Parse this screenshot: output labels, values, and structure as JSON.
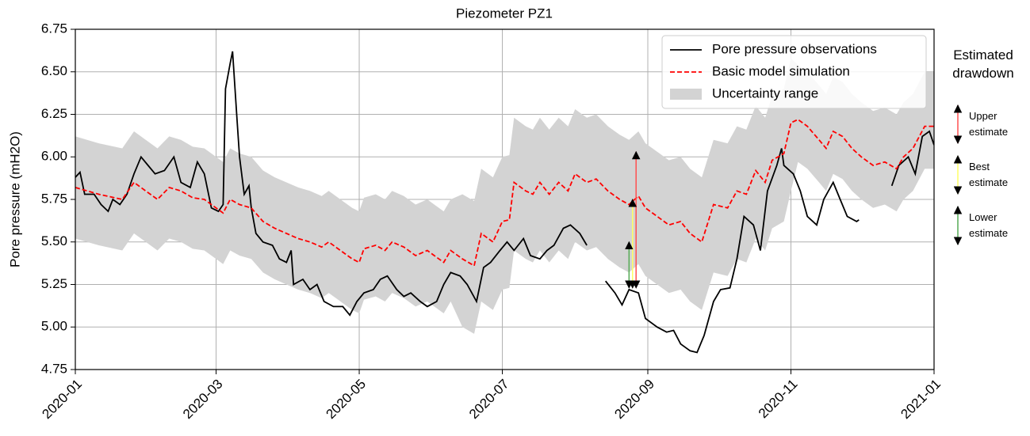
{
  "chart_data": {
    "type": "line",
    "title": "Piezometer PZ1",
    "ylabel": "Pore pressure (mH2O)",
    "xlim": [
      0,
      366
    ],
    "ylim": [
      4.75,
      6.75
    ],
    "xticks": [
      {
        "value": 0,
        "label": "2020-01"
      },
      {
        "value": 60,
        "label": "2020-03"
      },
      {
        "value": 121,
        "label": "2020-05"
      },
      {
        "value": 182,
        "label": "2020-07"
      },
      {
        "value": 244,
        "label": "2020-09"
      },
      {
        "value": 305,
        "label": "2020-11"
      },
      {
        "value": 366,
        "label": "2021-01"
      }
    ],
    "yticks": [
      4.75,
      {
        "value": 5,
        "label": "5.00"
      },
      5.25,
      {
        "value": 5.5,
        "label": "5.50"
      },
      5.75,
      {
        "value": 6,
        "label": "6.00"
      },
      6.25,
      {
        "value": 6.5,
        "label": "6.50"
      },
      6.75
    ],
    "grid": true,
    "legend": "upper right",
    "series": [
      {
        "name": "Pore pressure observations",
        "color": "#000000",
        "x": [
          0,
          2,
          4,
          8,
          11,
          14,
          16,
          19,
          22,
          25,
          28,
          31,
          34,
          38,
          42,
          45,
          49,
          52,
          55,
          58,
          61,
          63,
          64,
          66,
          67,
          69,
          70,
          72,
          74,
          75,
          77,
          80,
          84,
          87,
          90,
          92,
          93,
          97,
          100,
          103,
          106,
          110,
          114,
          117,
          120,
          123,
          127,
          130,
          133,
          137,
          140,
          143,
          147,
          150,
          154,
          157,
          160,
          164,
          167,
          171,
          174,
          177,
          181,
          184,
          187,
          191,
          194,
          198,
          201,
          204,
          208,
          211,
          215,
          218,
          222,
          226,
          230,
          233,
          236,
          240,
          243,
          248,
          252,
          255,
          258,
          262,
          265,
          268,
          272,
          275,
          279,
          282,
          285,
          289,
          292,
          295,
          299,
          301,
          302,
          306,
          309,
          312,
          316,
          319,
          323,
          326,
          329,
          333,
          334,
          341,
          348,
          351,
          355,
          358,
          361,
          364,
          366
        ],
        "values": [
          5.88,
          5.91,
          5.78,
          5.78,
          5.72,
          5.68,
          5.75,
          5.72,
          5.78,
          5.9,
          6.0,
          5.95,
          5.9,
          5.92,
          6.0,
          5.85,
          5.82,
          5.97,
          5.9,
          5.7,
          5.68,
          5.72,
          6.4,
          6.55,
          6.62,
          6.2,
          6.0,
          5.78,
          5.83,
          5.7,
          5.55,
          5.5,
          5.48,
          5.4,
          5.38,
          5.45,
          5.25,
          5.28,
          5.22,
          5.25,
          5.15,
          5.12,
          5.12,
          5.07,
          5.15,
          5.2,
          5.22,
          5.28,
          5.3,
          5.22,
          5.18,
          5.2,
          5.15,
          5.12,
          5.15,
          5.25,
          5.32,
          5.3,
          5.25,
          5.15,
          5.35,
          5.38,
          5.45,
          5.5,
          5.45,
          5.52,
          5.42,
          5.4,
          5.45,
          5.48,
          5.58,
          5.6,
          5.55,
          5.48,
          null,
          5.27,
          5.2,
          5.13,
          5.22,
          5.2,
          5.05,
          5.0,
          4.97,
          4.98,
          4.9,
          4.86,
          4.85,
          4.95,
          5.15,
          5.22,
          5.23,
          5.4,
          5.65,
          5.6,
          5.45,
          5.8,
          5.95,
          6.05,
          5.95,
          5.9,
          5.8,
          5.65,
          5.6,
          5.75,
          5.85,
          5.75,
          5.65,
          5.62,
          5.63,
          null,
          5.83,
          5.95,
          6.0,
          5.9,
          6.12,
          6.15,
          6.07
        ]
      },
      {
        "name": "Basic model simulation",
        "color": "#ff0000",
        "dashed": true,
        "x": [
          0,
          10,
          20,
          25,
          30,
          35,
          40,
          45,
          50,
          55,
          60,
          63,
          66,
          70,
          75,
          80,
          85,
          90,
          95,
          100,
          105,
          108,
          112,
          118,
          121,
          123,
          128,
          132,
          135,
          140,
          145,
          150,
          153,
          157,
          160,
          165,
          170,
          173,
          178,
          182,
          185,
          187,
          192,
          195,
          198,
          202,
          206,
          210,
          213,
          218,
          222,
          227,
          232,
          236,
          240,
          243,
          248,
          253,
          258,
          262,
          267,
          272,
          278,
          282,
          286,
          290,
          294,
          297,
          302,
          305,
          308,
          312,
          317,
          320,
          323,
          327,
          331,
          335,
          340,
          345,
          350,
          353,
          357,
          362,
          366
        ],
        "values": [
          5.82,
          5.78,
          5.75,
          5.85,
          5.8,
          5.75,
          5.82,
          5.8,
          5.76,
          5.75,
          5.7,
          5.67,
          5.75,
          5.72,
          5.7,
          5.62,
          5.58,
          5.55,
          5.52,
          5.5,
          5.47,
          5.5,
          5.46,
          5.4,
          5.38,
          5.46,
          5.48,
          5.45,
          5.5,
          5.47,
          5.42,
          5.45,
          5.42,
          5.38,
          5.45,
          5.4,
          5.36,
          5.55,
          5.5,
          5.62,
          5.63,
          5.85,
          5.8,
          5.78,
          5.85,
          5.78,
          5.85,
          5.8,
          5.9,
          5.85,
          5.87,
          5.8,
          5.75,
          5.72,
          5.77,
          5.7,
          5.65,
          5.6,
          5.62,
          5.55,
          5.5,
          5.72,
          5.7,
          5.8,
          5.78,
          5.92,
          5.85,
          5.98,
          6.02,
          6.2,
          6.22,
          6.18,
          6.1,
          6.05,
          6.15,
          6.12,
          6.05,
          6.0,
          5.95,
          5.97,
          5.93,
          6.0,
          6.05,
          6.18,
          6.18
        ]
      },
      {
        "name": "Uncertainty range",
        "color": "#d3d3d3",
        "band": true,
        "x": [
          0,
          10,
          20,
          25,
          30,
          35,
          40,
          45,
          50,
          55,
          60,
          63,
          66,
          70,
          75,
          80,
          85,
          90,
          95,
          100,
          105,
          108,
          112,
          118,
          121,
          123,
          128,
          132,
          135,
          140,
          145,
          150,
          153,
          157,
          160,
          165,
          170,
          173,
          178,
          182,
          185,
          187,
          192,
          195,
          198,
          202,
          206,
          210,
          213,
          218,
          222,
          227,
          232,
          236,
          240,
          243,
          248,
          253,
          258,
          262,
          267,
          272,
          278,
          282,
          286,
          290,
          294,
          297,
          302,
          305,
          308,
          312,
          317,
          320,
          323,
          327,
          331,
          335,
          340,
          345,
          350,
          353,
          357,
          362,
          366
        ],
        "upper": [
          6.12,
          6.08,
          6.05,
          6.15,
          6.1,
          6.05,
          6.12,
          6.1,
          6.06,
          6.05,
          6.0,
          5.97,
          6.05,
          6.02,
          6.0,
          5.92,
          5.88,
          5.85,
          5.82,
          5.8,
          5.77,
          5.8,
          5.76,
          5.7,
          5.68,
          5.76,
          5.78,
          5.75,
          5.8,
          5.77,
          5.72,
          5.75,
          5.72,
          5.68,
          5.75,
          5.78,
          5.74,
          5.93,
          5.88,
          6.0,
          6.01,
          6.23,
          6.18,
          6.16,
          6.23,
          6.16,
          6.23,
          6.18,
          6.28,
          6.23,
          6.25,
          6.18,
          6.13,
          6.1,
          6.15,
          6.08,
          6.03,
          5.98,
          6.0,
          5.93,
          5.88,
          6.1,
          6.08,
          6.18,
          6.16,
          6.3,
          6.23,
          6.36,
          6.4,
          6.58,
          6.54,
          6.5,
          6.42,
          6.37,
          6.47,
          6.44,
          6.37,
          6.32,
          6.27,
          6.29,
          6.25,
          6.32,
          6.37,
          6.5,
          6.5
        ],
        "lower": [
          5.52,
          5.48,
          5.45,
          5.55,
          5.5,
          5.45,
          5.52,
          5.5,
          5.46,
          5.45,
          5.4,
          5.37,
          5.45,
          5.42,
          5.4,
          5.32,
          5.28,
          5.25,
          5.22,
          5.2,
          5.17,
          5.2,
          5.16,
          5.1,
          5.08,
          5.16,
          5.18,
          5.15,
          5.2,
          5.17,
          5.12,
          5.15,
          5.12,
          5.08,
          5.15,
          5.0,
          4.96,
          5.15,
          5.1,
          5.22,
          5.23,
          5.45,
          5.4,
          5.38,
          5.45,
          5.38,
          5.45,
          5.4,
          5.5,
          5.45,
          5.47,
          5.4,
          5.35,
          5.32,
          5.37,
          5.3,
          5.25,
          5.2,
          5.22,
          5.15,
          5.1,
          5.32,
          5.3,
          5.4,
          5.38,
          5.52,
          5.45,
          5.58,
          5.62,
          5.8,
          5.97,
          5.93,
          5.85,
          5.8,
          5.9,
          5.87,
          5.8,
          5.75,
          5.7,
          5.72,
          5.68,
          5.75,
          5.8,
          5.93,
          5.93
        ]
      }
    ],
    "drawdown": {
      "title": "Estimated drawdown",
      "items": [
        {
          "label": "Upper estimate",
          "color": "#ff5050",
          "x": 239,
          "from": 5.23,
          "to": 6.03
        },
        {
          "label": "Best estimate",
          "color": "#ffff66",
          "x": 237.5,
          "from": 5.23,
          "to": 5.75
        },
        {
          "label": "Lower estimate",
          "color": "#55aa55",
          "x": 236,
          "from": 5.23,
          "to": 5.5
        }
      ]
    }
  }
}
